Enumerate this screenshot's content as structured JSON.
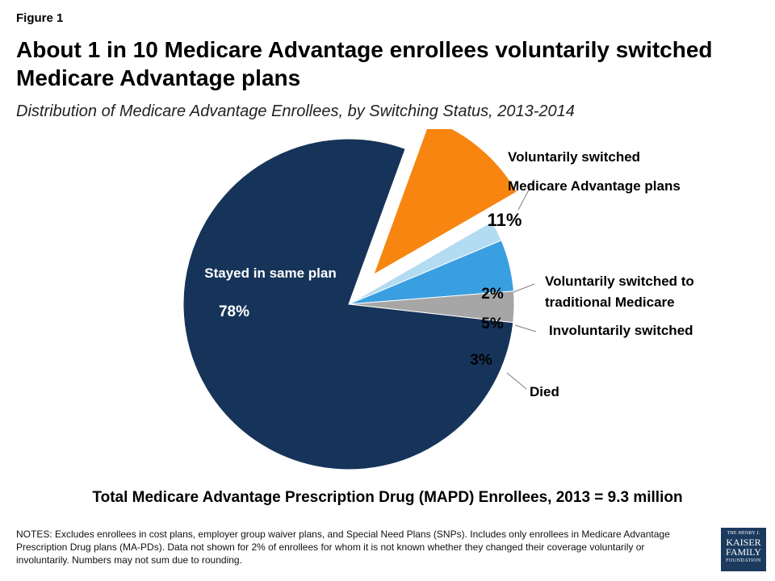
{
  "figure_label": "Figure 1",
  "title": "About 1 in 10 Medicare Advantage enrollees voluntarily switched Medicare Advantage plans",
  "subtitle": "Distribution of Medicare Advantage Enrollees, by Switching Status, 2013-2014",
  "total_label": "Total Medicare Advantage Prescription Drug (MAPD) Enrollees, 2013 = 9.3 million",
  "notes": "NOTES: Excludes enrollees in cost plans, employer group waiver plans, and Special Need Plans (SNPs).  Includes only enrollees in Medicare Advantage Prescription Drug plans (MA-PDs).  Data not shown for 2% of enrollees for whom it is not known whether they changed their coverage voluntarily or involuntarily.  Numbers may not sum due to rounding.",
  "logo": {
    "line1": "THE HENRY J.",
    "line2": "KAISER",
    "line3": "FAMILY",
    "line4": "FOUNDATION"
  },
  "chart_data": {
    "type": "pie",
    "slices": [
      {
        "label": "Voluntarily switched Medicare Advantage plans",
        "value": 11,
        "value_label": "11%",
        "color": "#f7850f",
        "exploded": true
      },
      {
        "label": "Voluntarily switched to traditional Medicare",
        "value": 2,
        "value_label": "2%",
        "color": "#b3dbf2"
      },
      {
        "label": "Involuntarily switched",
        "value": 5,
        "value_label": "5%",
        "color": "#3a9fe0"
      },
      {
        "label": "Died",
        "value": 3,
        "value_label": "3%",
        "color": "#a6a6a6"
      },
      {
        "label": "Stayed in same plan",
        "value": 78,
        "value_label": "78%",
        "color": "#163459"
      }
    ]
  }
}
